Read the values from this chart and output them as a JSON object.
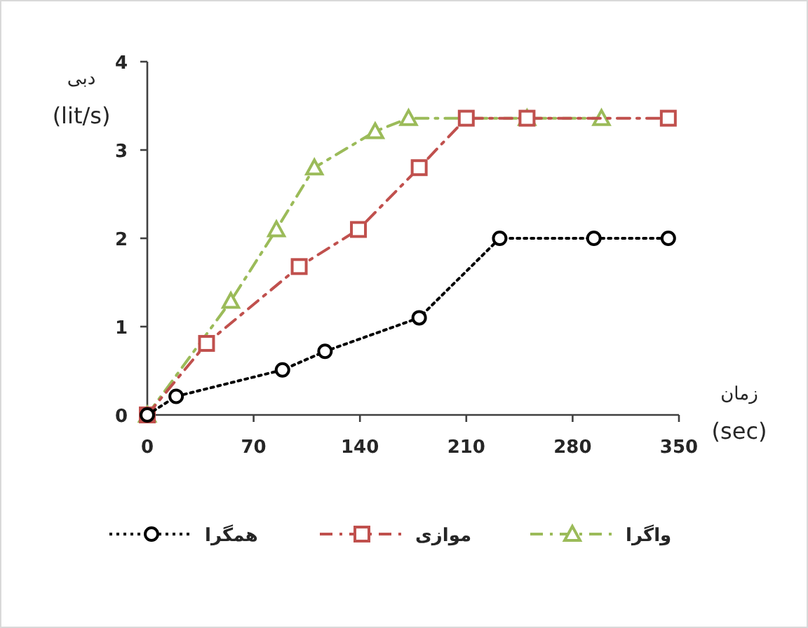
{
  "chart_data": {
    "type": "line",
    "xlabel": "زمان\n(sec)",
    "ylabel": "دبی\n(lit/s)",
    "xlim": [
      0,
      350
    ],
    "xticks": [
      0,
      70,
      140,
      210,
      280,
      350
    ],
    "ylim": [
      0,
      4
    ],
    "yticks": [
      0,
      1,
      2,
      3,
      4
    ],
    "grid": false,
    "legend": "bottom",
    "series": [
      {
        "name": "همگرا",
        "color": "#000000",
        "marker": "circle",
        "line_style": "dotted",
        "x": [
          0,
          19,
          89,
          117,
          179,
          232,
          294,
          343
        ],
        "values": [
          0,
          0.21,
          0.51,
          0.72,
          1.1,
          2.0,
          2.0,
          2.0
        ]
      },
      {
        "name": "موازی",
        "color": "#c0504d",
        "marker": "square",
        "line_style": "dashed",
        "x": [
          0,
          39,
          100,
          139,
          179,
          210,
          250,
          343
        ],
        "values": [
          0,
          0.81,
          1.68,
          2.1,
          2.8,
          3.36,
          3.36,
          3.36
        ]
      },
      {
        "name": "واگرا",
        "color": "#9bbb59",
        "marker": "triangle",
        "line_style": "dashed",
        "x": [
          0,
          55,
          85,
          110,
          150,
          172,
          250,
          299
        ],
        "values": [
          0,
          1.29,
          2.1,
          2.8,
          3.21,
          3.36,
          3.36,
          3.36
        ]
      }
    ]
  }
}
